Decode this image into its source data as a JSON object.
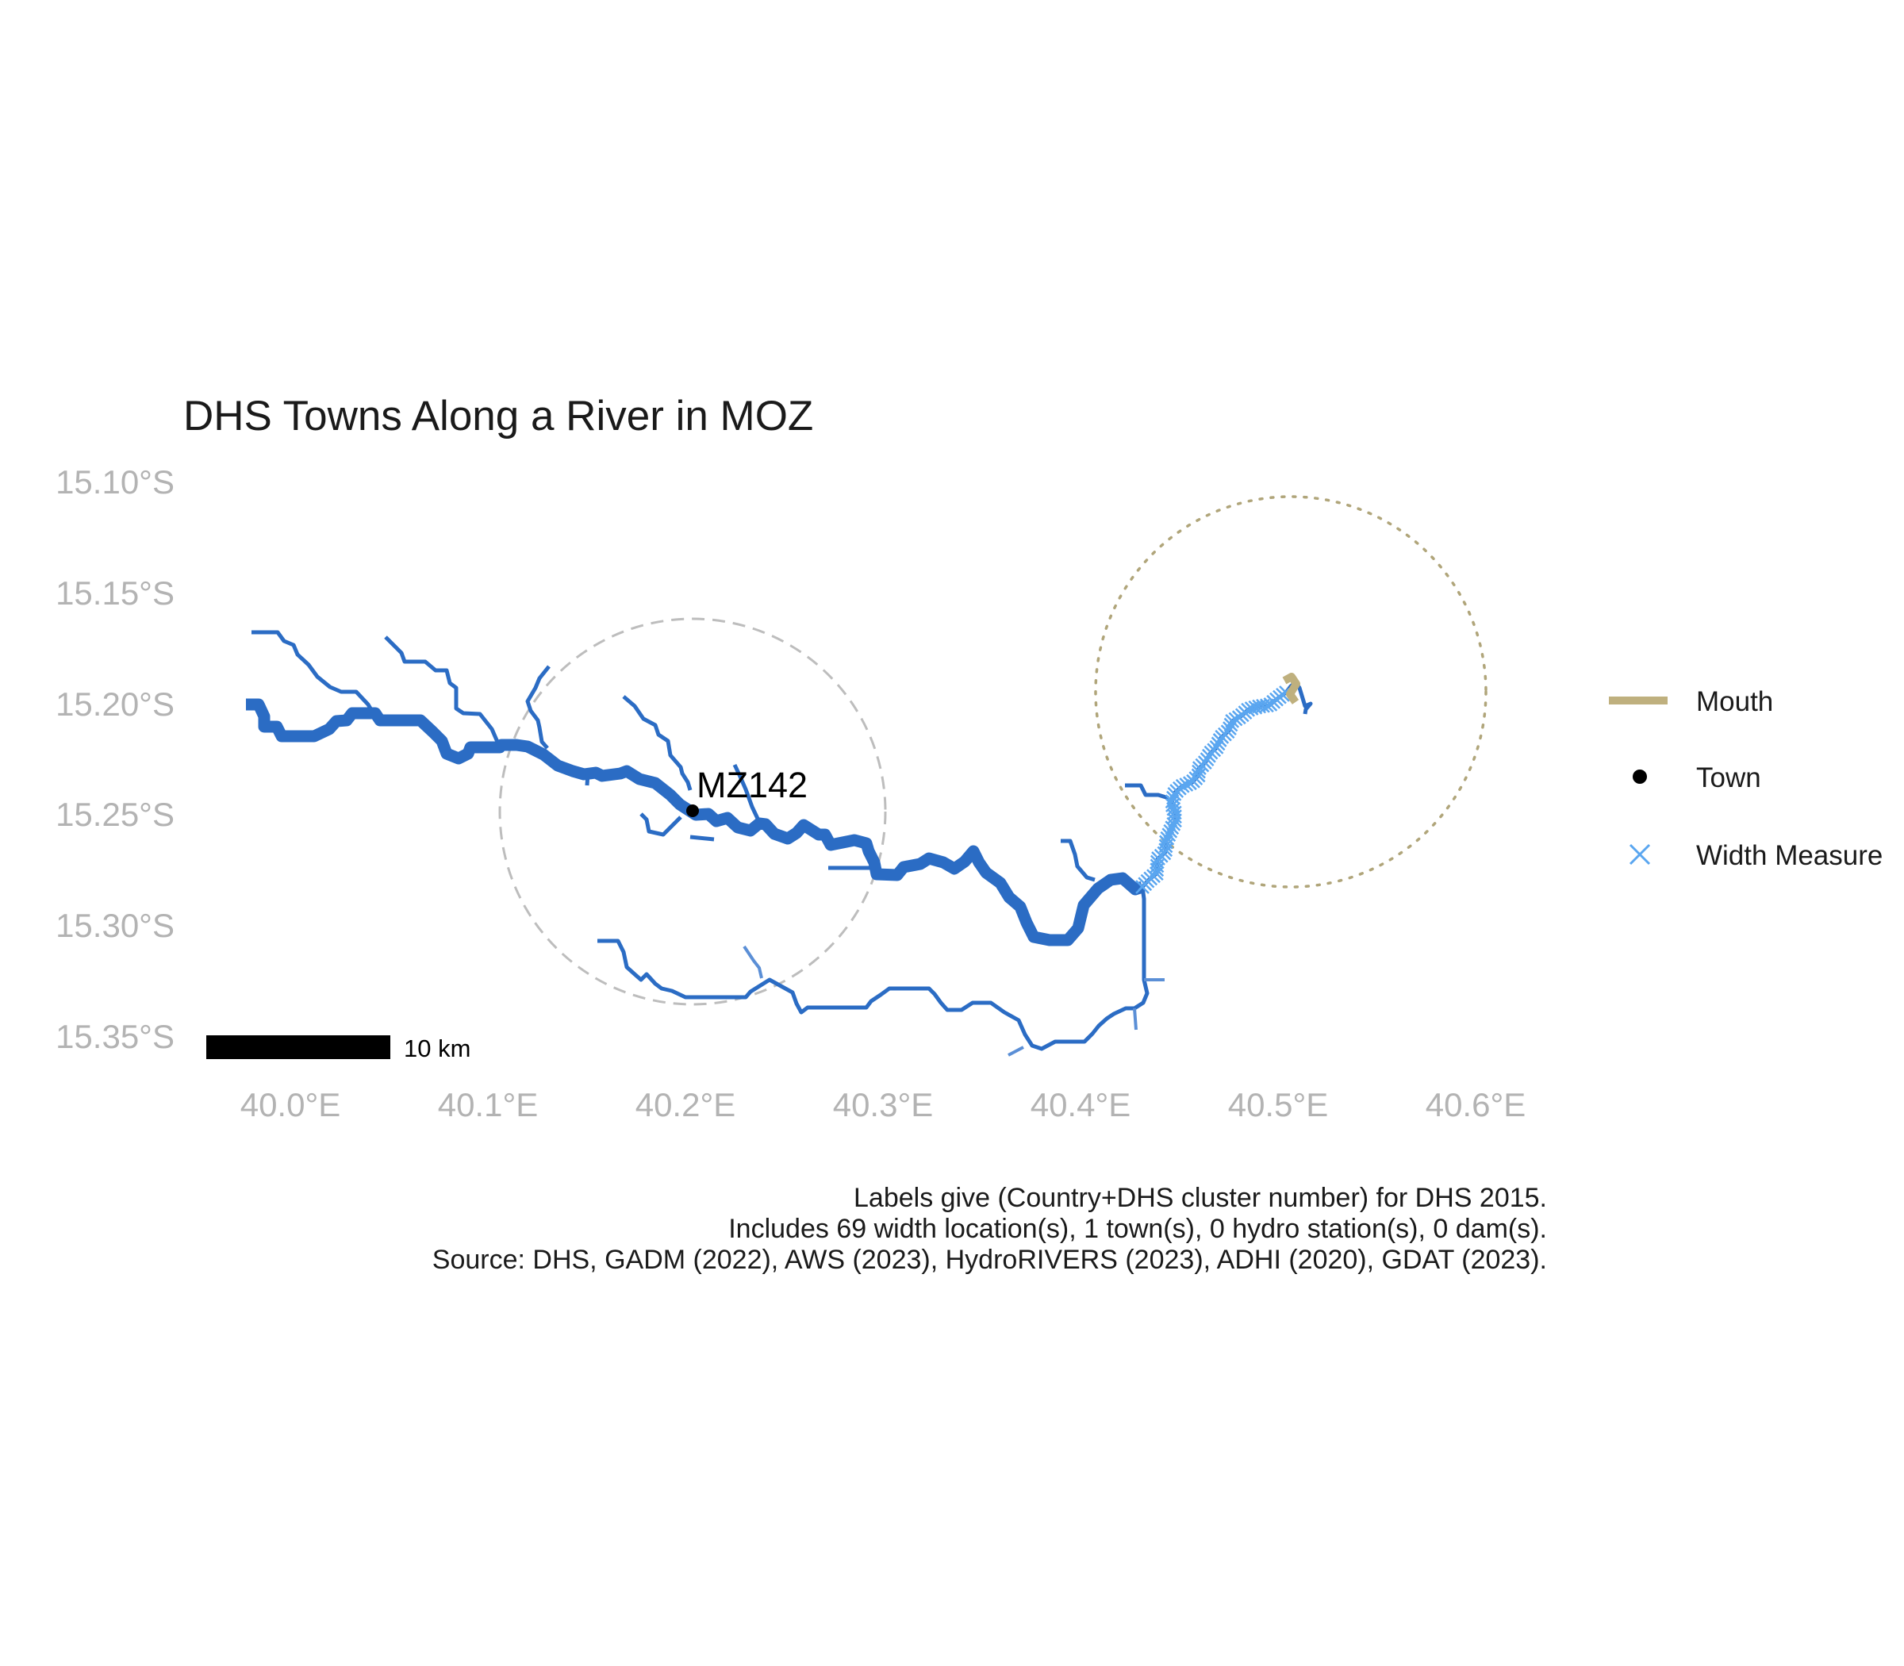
{
  "title": "DHS Towns Along a River in MOZ",
  "colors": {
    "river": "#2b6cc4",
    "river_light": "#5b8fd6",
    "width_measure": "#5aa6f0",
    "mouth": "#bfb07e",
    "town": "#000000",
    "buffer_town": "#bdbdbd",
    "buffer_mouth": "#b0a57a",
    "axis_text": "#b3b3b3"
  },
  "axes": {
    "x_ticks": [
      "40.0°E",
      "40.1°E",
      "40.2°E",
      "40.3°E",
      "40.4°E",
      "40.5°E",
      "40.6°E"
    ],
    "y_ticks": [
      "15.10°S",
      "15.15°S",
      "15.20°S",
      "15.25°S",
      "15.30°S",
      "15.35°S"
    ]
  },
  "towns": [
    {
      "label": "MZ142",
      "lon": 40.203,
      "lat": -15.249
    }
  ],
  "scale_bar": {
    "label": "10 km"
  },
  "legend": {
    "items": [
      {
        "label": "Mouth",
        "symbol": "line",
        "color_key": "mouth"
      },
      {
        "label": "Town",
        "symbol": "point",
        "color_key": "town"
      },
      {
        "label": "Width Measure",
        "symbol": "cross",
        "color_key": "width_measure"
      }
    ]
  },
  "caption": [
    "Labels give (Country+DHS cluster number) for DHS 2015.",
    "Includes 69 width location(s), 1 town(s), 0 hydro station(s), 0 dam(s).",
    "Source: DHS, GADM (2022), AWS (2023), HydroRIVERS (2023), ADHI (2020), GDAT (2023)."
  ],
  "icons": {
    "town_marker": "filled-circle",
    "width_marker": "x-cross",
    "mouth_marker": "thick-line"
  }
}
